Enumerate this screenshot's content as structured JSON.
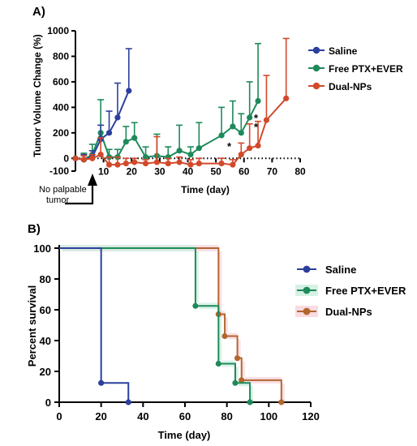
{
  "figure": {
    "panel_a_label": "A)",
    "panel_b_label": "B)",
    "annotation_arrow_text": [
      "No palpable",
      "tumor"
    ],
    "significance_marks": [
      "*",
      "*",
      "*"
    ]
  },
  "colors": {
    "saline": "#2b3f9e",
    "free": "#1e8a5a",
    "dual": "#d2492a",
    "dual_survival": "#b5652e",
    "dual_shade": "#f7d6dd",
    "free_shade": "#cfeee0",
    "axis": "#000000"
  },
  "chart_data": [
    {
      "type": "line",
      "panel": "A",
      "title": "",
      "xlabel": "Time (day)",
      "ylabel": "Tumor Volume Change (%)",
      "xlim": [
        0,
        80
      ],
      "ylim": [
        -100,
        1000
      ],
      "x_ticks": [
        10,
        20,
        30,
        40,
        50,
        60,
        70,
        80
      ],
      "y_ticks": [
        -100,
        0,
        200,
        400,
        600,
        800,
        1000
      ],
      "x_tick_labels": [
        "10",
        "20",
        "30",
        "40",
        "50",
        "60",
        "70",
        "80"
      ],
      "y_tick_labels": [
        "-100",
        "0",
        "200",
        "400",
        "600",
        "800",
        "1000"
      ],
      "legend_position": "right",
      "series": [
        {
          "name": "Saline",
          "color_key": "saline",
          "x": [
            0,
            3,
            6,
            9,
            12,
            15,
            19
          ],
          "y": [
            0,
            -10,
            10,
            150,
            200,
            320,
            530
          ],
          "err": [
            0,
            40,
            50,
            110,
            170,
            270,
            330
          ]
        },
        {
          "name": "Free PTX+EVER",
          "color_key": "free",
          "x": [
            0,
            3,
            6,
            9,
            12,
            15,
            18,
            21,
            25,
            29,
            33,
            37,
            41,
            44,
            52,
            56,
            59,
            62,
            65
          ],
          "y": [
            0,
            -10,
            30,
            200,
            10,
            10,
            130,
            160,
            10,
            20,
            10,
            60,
            30,
            80,
            180,
            250,
            200,
            320,
            450
          ],
          "err": [
            0,
            50,
            80,
            260,
            60,
            60,
            120,
            120,
            80,
            170,
            80,
            200,
            60,
            200,
            220,
            200,
            150,
            280,
            450
          ]
        },
        {
          "name": "Dual-NPs",
          "color_key": "dual",
          "x": [
            0,
            3,
            6,
            9,
            12,
            15,
            18,
            21,
            25,
            29,
            33,
            37,
            41,
            44,
            52,
            56,
            59,
            62,
            65,
            68,
            75
          ],
          "y": [
            0,
            -10,
            0,
            30,
            -50,
            -50,
            -40,
            -30,
            -40,
            -30,
            -40,
            -30,
            -50,
            -40,
            -40,
            -50,
            30,
            80,
            100,
            300,
            470
          ],
          "err": [
            0,
            30,
            30,
            130,
            60,
            60,
            40,
            30,
            30,
            200,
            40,
            40,
            40,
            40,
            40,
            40,
            90,
            190,
            190,
            350,
            470
          ]
        }
      ]
    },
    {
      "type": "line",
      "panel": "B",
      "title": "",
      "xlabel": "Time (day)",
      "ylabel": "Percent survival",
      "xlim": [
        0,
        120
      ],
      "ylim": [
        0,
        100
      ],
      "x_ticks": [
        0,
        20,
        40,
        60,
        80,
        100,
        120
      ],
      "y_ticks": [
        0,
        20,
        40,
        60,
        80,
        100
      ],
      "x_tick_labels": [
        "0",
        "20",
        "40",
        "60",
        "80",
        "100",
        "120"
      ],
      "y_tick_labels": [
        "0",
        "20",
        "40",
        "60",
        "80",
        "100"
      ],
      "legend_position": "right",
      "series": [
        {
          "name": "Saline",
          "color_key": "saline",
          "x": [
            0,
            20,
            33
          ],
          "y": [
            100,
            12.5,
            0
          ]
        },
        {
          "name": "Free PTX+EVER",
          "color_key": "free",
          "x": [
            0,
            65,
            76,
            84,
            91
          ],
          "y": [
            100,
            62.5,
            25,
            12.5,
            0
          ]
        },
        {
          "name": "Dual-NPs",
          "color_key": "dual_survival",
          "x": [
            0,
            76,
            79,
            85,
            87,
            106
          ],
          "y": [
            100,
            57.1,
            42.9,
            28.6,
            14.3,
            0
          ]
        }
      ]
    }
  ]
}
